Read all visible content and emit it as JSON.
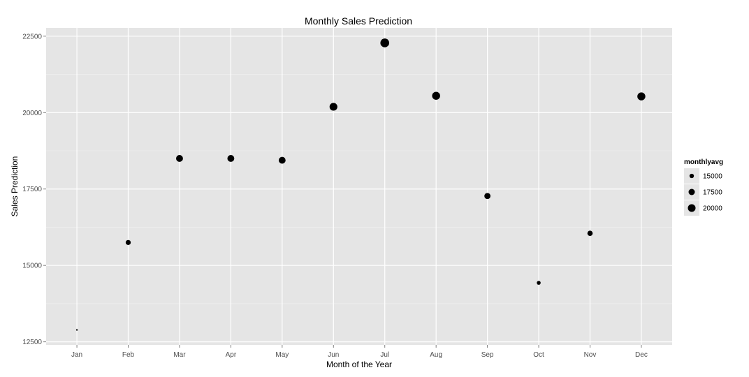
{
  "chart_data": {
    "type": "scatter",
    "title": "Monthly Sales Prediction",
    "xlabel": "Month of the Year",
    "ylabel": "Sales Prediction",
    "categories": [
      "Jan",
      "Feb",
      "Mar",
      "Apr",
      "May",
      "Jun",
      "Jul",
      "Aug",
      "Sep",
      "Oct",
      "Nov",
      "Dec"
    ],
    "values": [
      12890,
      15750,
      18500,
      18500,
      18440,
      20190,
      22280,
      20550,
      17270,
      14430,
      16050,
      20530
    ],
    "ylim": [
      12400,
      22770
    ],
    "yticks": [
      12500,
      15000,
      17500,
      20000,
      22500
    ],
    "size_range": [
      12890,
      22280
    ],
    "grid": true,
    "legend": {
      "title": "monthlyavg",
      "placement": "right",
      "entries": [
        {
          "label": "15000",
          "value": 15000
        },
        {
          "label": "17500",
          "value": 17500
        },
        {
          "label": "20000",
          "value": 20000
        }
      ]
    },
    "colors": {
      "panel": "#e5e5e5",
      "grid_major": "#ffffff",
      "grid_minor": "#f2f2f2",
      "point": "#000000"
    }
  }
}
